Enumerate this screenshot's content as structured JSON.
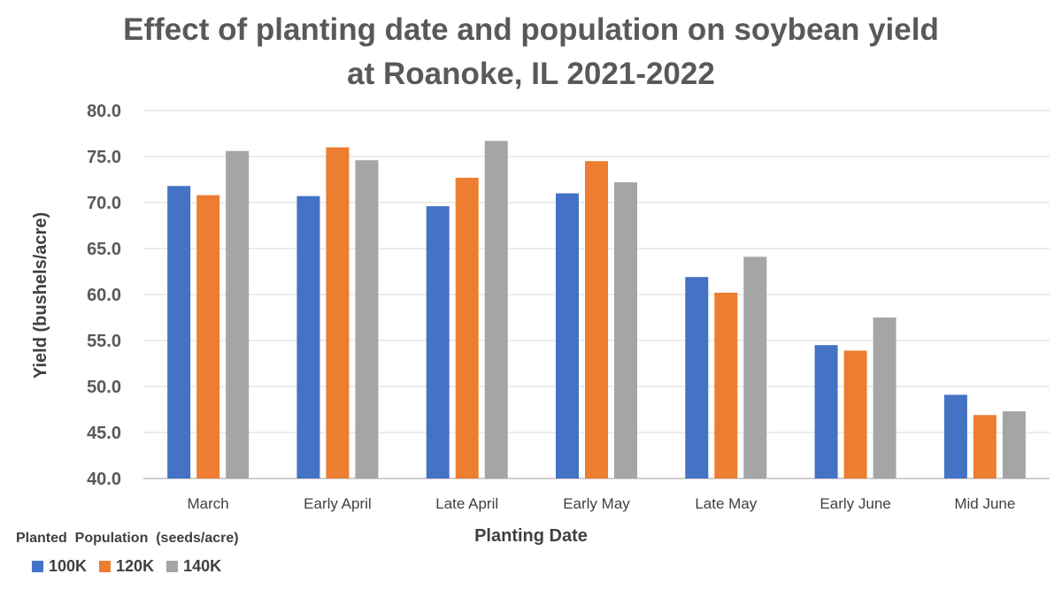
{
  "chart_data": {
    "type": "bar",
    "title": "Effect of planting date and population on soybean yield",
    "subtitle": "at Roanoke, IL 2021-2022",
    "xlabel": "Planting Date",
    "ylabel": "Yield (bushels/acre)",
    "ylim": [
      40,
      80
    ],
    "yticks": [
      "40.0",
      "45.0",
      "50.0",
      "55.0",
      "60.0",
      "65.0",
      "70.0",
      "75.0",
      "80.0"
    ],
    "grid": true,
    "legend_title": "Planted  Population  (seeds/acre)",
    "legend_position": "bottom-left",
    "categories": [
      "March",
      "Early April",
      "Late April",
      "Early May",
      "Late May",
      "Early June",
      "Mid June"
    ],
    "series": [
      {
        "name": "100K",
        "color": "#4472C4",
        "values": [
          71.8,
          70.7,
          69.6,
          71.0,
          61.9,
          54.5,
          49.1
        ]
      },
      {
        "name": "120K",
        "color": "#ED7D31",
        "values": [
          70.8,
          76.0,
          72.7,
          74.5,
          60.2,
          53.9,
          46.9
        ]
      },
      {
        "name": "140K",
        "color": "#A5A5A5",
        "values": [
          75.6,
          74.6,
          76.7,
          72.2,
          64.1,
          57.5,
          47.3
        ]
      }
    ]
  }
}
